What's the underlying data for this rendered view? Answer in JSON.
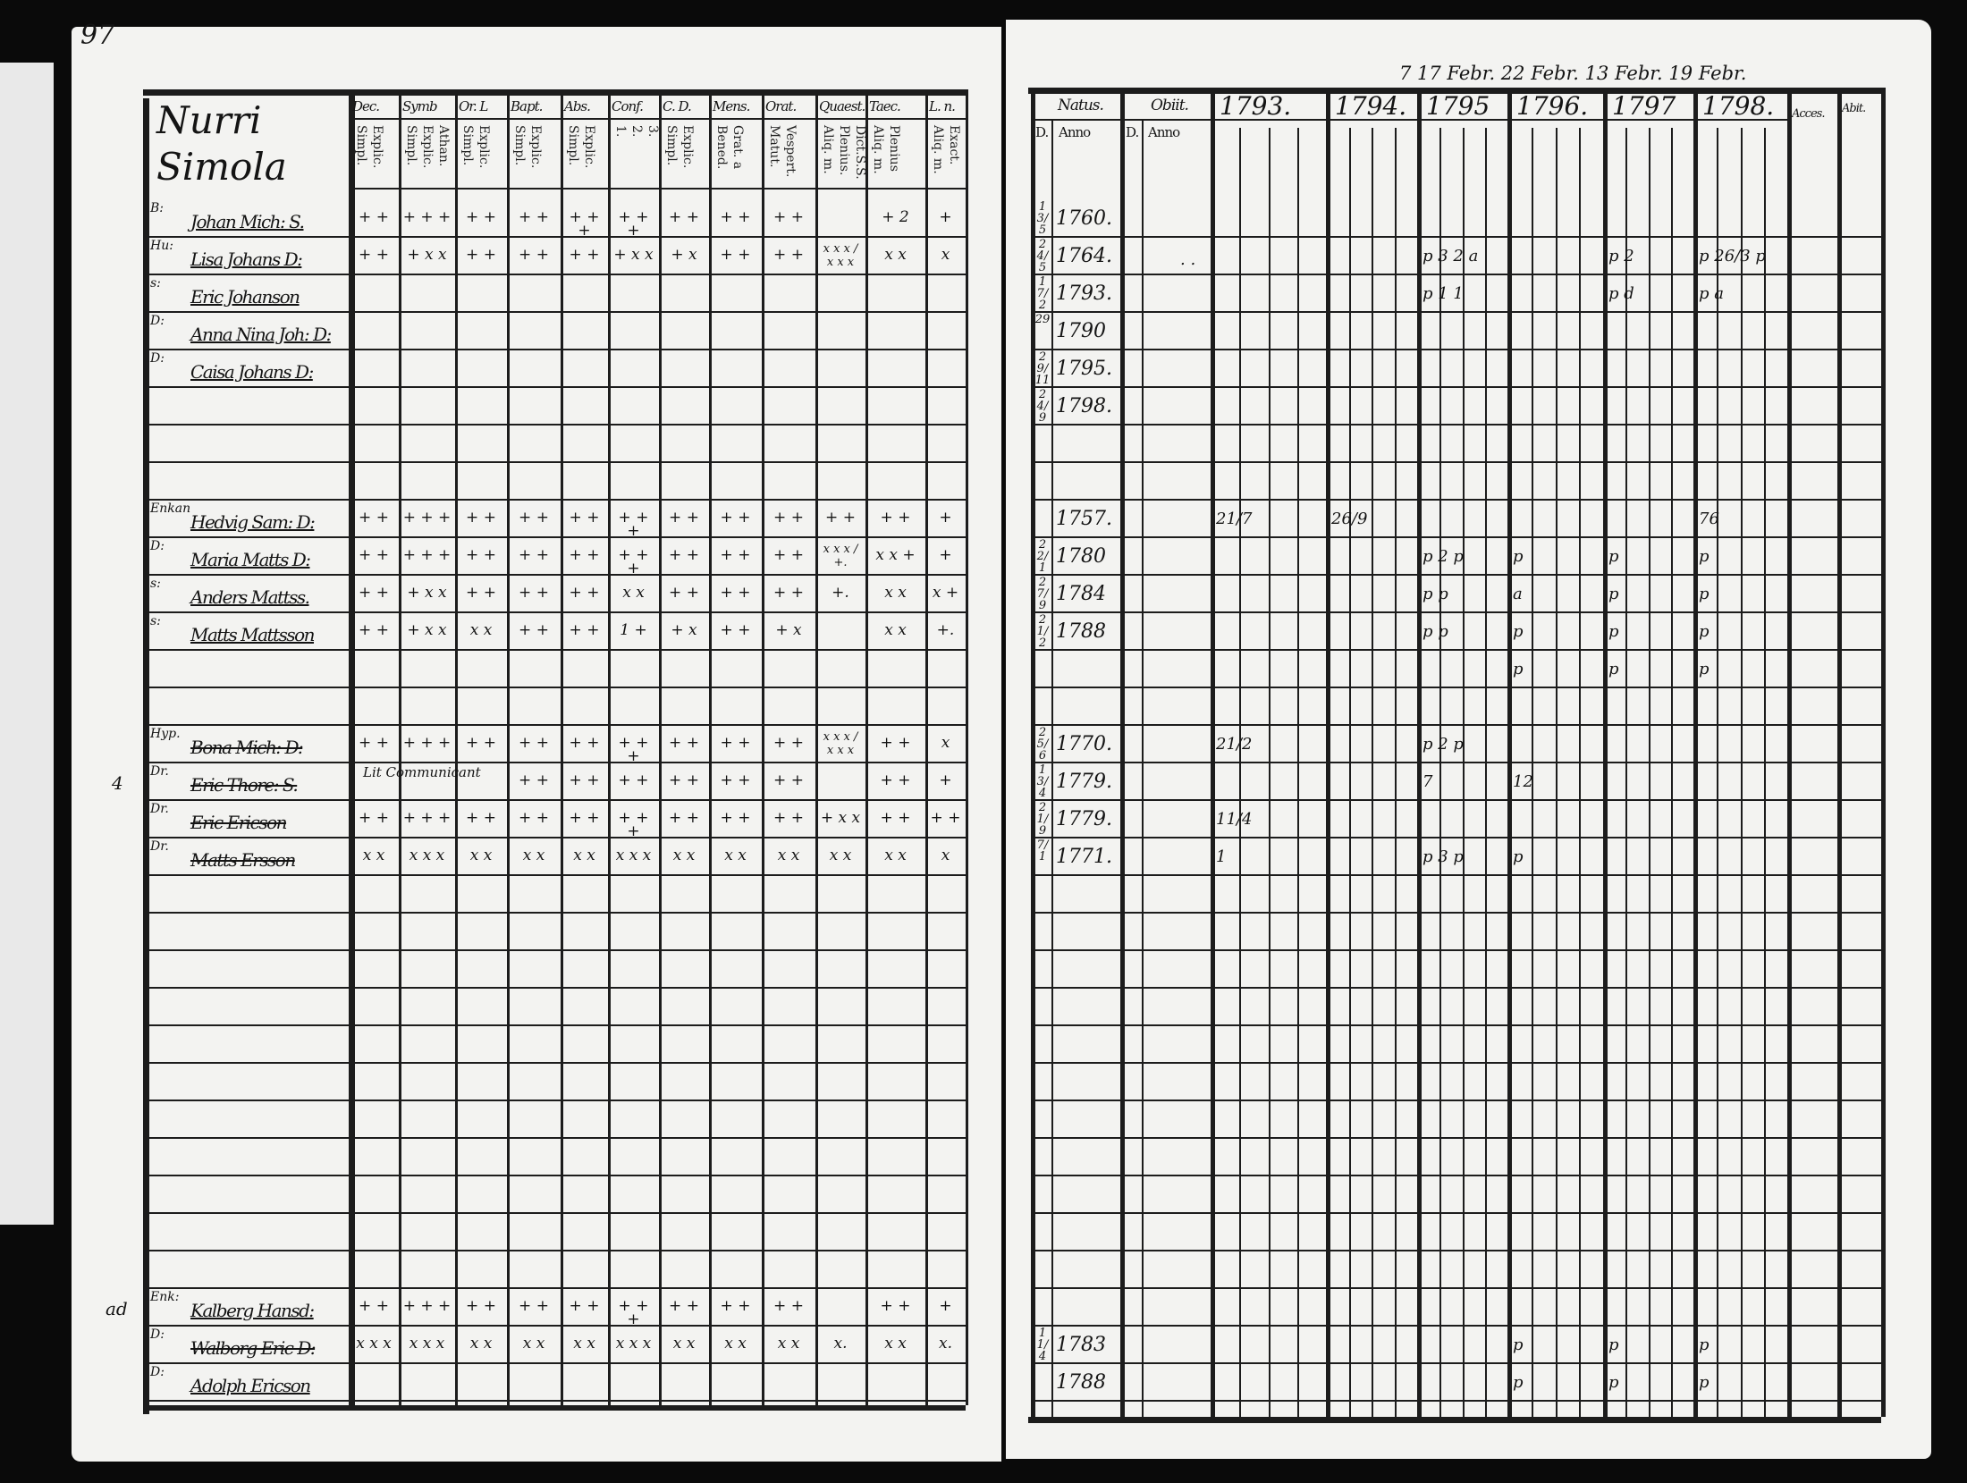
{
  "page_number": "97",
  "left_page": {
    "place_title": [
      "Nurri",
      "Simola"
    ],
    "columns": [
      {
        "label": "Dec.",
        "sub": "Explic.\nSimpl."
      },
      {
        "label": "Symb",
        "sub": "Athan.\nExplic.\nSimpl."
      },
      {
        "label": "Or. L",
        "sub": "Explic.\nSimpl."
      },
      {
        "label": "Bapt.",
        "sub": "Explic.\nSimpl."
      },
      {
        "label": "Abs.",
        "sub": "Explic.\nSimpl."
      },
      {
        "label": "Conf.",
        "sub": "3.\n2.\n1."
      },
      {
        "label": "C. D.",
        "sub": "Explic.\nSimpl."
      },
      {
        "label": "Mens.",
        "sub": "Grat. a\nBened."
      },
      {
        "label": "Orat.",
        "sub": "Vespert.\nMatut."
      },
      {
        "label": "Quaest.",
        "sub": "Dict.S.S.\nPlenius.\nAliq. m."
      },
      {
        "label": "Taec.",
        "sub": "Plenius\nAliq. m."
      },
      {
        "label": "L. n.",
        "sub": "Exact.\nAliq. m."
      }
    ],
    "rows": [
      {
        "prefix": "B:",
        "name": "Johan Mich: S.",
        "marks": [
          "+ +",
          "+ + +",
          "+ +",
          "+ +",
          "+ + +",
          "+ + +",
          "+ +",
          "+ +",
          "+ +",
          "",
          "+ 2",
          "+"
        ]
      },
      {
        "prefix": "Hu:",
        "name": "Lisa Johans D:",
        "marks": [
          "+ +",
          "+ x x",
          "+ +",
          "+ +",
          "+ +",
          "+ x x",
          "+ x",
          "+ +",
          "+ +",
          "x x x / x x x",
          "x x",
          "x"
        ]
      },
      {
        "prefix": "s:",
        "name": "Eric Johanson",
        "marks": []
      },
      {
        "prefix": "D:",
        "name": "Anna Nina Joh: D:",
        "marks": []
      },
      {
        "prefix": "D:",
        "name": "Caisa Johans D:",
        "marks": []
      },
      {
        "prefix": "",
        "name": "",
        "marks": []
      },
      {
        "prefix": "",
        "name": "",
        "marks": []
      },
      {
        "prefix": "",
        "name": "",
        "marks": []
      },
      {
        "prefix": "Enkan",
        "name": "Hedvig Sam: D:",
        "marks": [
          "+ +",
          "+ + +",
          "+ +",
          "+ +",
          "+ +",
          "+ + +",
          "+ +",
          "+ +",
          "+ +",
          "+ +",
          "+ +",
          "+"
        ]
      },
      {
        "prefix": "D:",
        "name": "Maria Matts D:",
        "marks": [
          "+ +",
          "+ + +",
          "+ +",
          "+ +",
          "+ +",
          "+ + +",
          "+ +",
          "+ +",
          "+ +",
          "x x x / +.",
          "x x +",
          "+"
        ]
      },
      {
        "prefix": "s:",
        "name": "Anders Mattss.",
        "marks": [
          "+ +",
          "+ x x",
          "+ +",
          "+ +",
          "+ +",
          "x x",
          "+ +",
          "+ +",
          "+ +",
          "+.",
          "x x",
          "x +"
        ]
      },
      {
        "prefix": "s:",
        "name": "Matts Mattsson",
        "marks": [
          "+ +",
          "+ x x",
          "x x",
          "+ +",
          "+ +",
          "1 +",
          "+ x",
          "+ +",
          "+ x",
          "",
          "x x",
          "+."
        ]
      },
      {
        "prefix": "",
        "name": "",
        "marks": []
      },
      {
        "prefix": "",
        "name": "",
        "marks": []
      },
      {
        "prefix": "Hyp.",
        "name": "Bona Mich: D:",
        "struck": true,
        "marks": [
          "+ +",
          "+ + +",
          "+ +",
          "+ +",
          "+ +",
          "+ + +",
          "+ +",
          "+ +",
          "+ +",
          "x x x / x x x",
          "+ +",
          "x"
        ]
      },
      {
        "prefix": "Dr.",
        "name": "Eric Thore: S.",
        "struck": true,
        "margin": "4",
        "note": "Lit Communicant",
        "marks": [
          "",
          "",
          "",
          "+ +",
          "+ +",
          "+ +",
          "+ +",
          "+ +",
          "+ +",
          "",
          "+ +",
          "+"
        ]
      },
      {
        "prefix": "Dr.",
        "name": "Eric Ericson",
        "struck": true,
        "marks": [
          "+ +",
          "+ + +",
          "+ +",
          "+ +",
          "+ +",
          "+ + +",
          "+ +",
          "+ +",
          "+ +",
          "+ x x",
          "+ +",
          "+ +"
        ]
      },
      {
        "prefix": "Dr.",
        "name": "Matts Ersson",
        "struck": true,
        "marks": [
          "x x",
          "x x x",
          "x x",
          "x x",
          "x x",
          "x x x",
          "x x",
          "x x",
          "x x",
          "x x",
          "x x",
          "x"
        ]
      },
      {
        "prefix": "",
        "name": "",
        "marks": []
      },
      {
        "prefix": "",
        "name": "",
        "marks": []
      },
      {
        "prefix": "",
        "name": "",
        "marks": []
      },
      {
        "prefix": "",
        "name": "",
        "marks": []
      },
      {
        "prefix": "",
        "name": "",
        "marks": []
      },
      {
        "prefix": "",
        "name": "",
        "marks": []
      },
      {
        "prefix": "",
        "name": "",
        "marks": []
      },
      {
        "prefix": "",
        "name": "",
        "marks": []
      },
      {
        "prefix": "",
        "name": "",
        "marks": []
      },
      {
        "prefix": "",
        "name": "",
        "marks": []
      },
      {
        "prefix": "",
        "name": "",
        "marks": []
      },
      {
        "prefix": "Enk:",
        "name": "Kalberg Hansd:",
        "margin": "ad",
        "marks": [
          "+ +",
          "+ + +",
          "+ +",
          "+ +",
          "+ +",
          "+ + +",
          "+ +",
          "+ +",
          "+ +",
          "",
          "+ +",
          "+"
        ]
      },
      {
        "prefix": "D:",
        "name": "Walborg Eric D:",
        "struck": true,
        "marks": [
          "x x x",
          "x x x",
          "x x",
          "x x",
          "x x",
          "x x x",
          "x x",
          "x x",
          "x x",
          "x.",
          "x x",
          "x."
        ]
      },
      {
        "prefix": "D:",
        "name": "Adolph Ericson",
        "marks": []
      }
    ]
  },
  "right_page": {
    "dates_note": "7 17 Febr. 22 Febr. 13 Febr. 19 Febr.",
    "natus": {
      "label": "Natus.",
      "day": "D.",
      "year": "Anno"
    },
    "obiit": {
      "label": "Obiit.",
      "day": "D.",
      "year": "Anno"
    },
    "years": [
      "1793.",
      "1794.",
      "1795",
      "1796.",
      "1797",
      "1798."
    ],
    "acces": "Acces.",
    "abit": "Abit.",
    "rows": [
      {
        "day": "13/5",
        "year": "1760.",
        "marks": [
          "",
          "",
          "",
          "",
          "",
          ""
        ]
      },
      {
        "day": "24/5",
        "year": "1764.",
        "obiit": ". .",
        "marks": [
          "",
          "",
          "p 3 2 a",
          "",
          "p 2",
          "p 26/3 p"
        ]
      },
      {
        "day": "17/2",
        "year": "1793.",
        "marks": [
          "",
          "",
          "p 1 1",
          "",
          "p d",
          "p a"
        ]
      },
      {
        "day": "29",
        "year": "1790",
        "marks": []
      },
      {
        "day": "29/11",
        "year": "1795.",
        "marks": []
      },
      {
        "day": "24/9",
        "year": "1798.",
        "marks": []
      },
      {
        "day": "",
        "year": "",
        "marks": []
      },
      {
        "day": "",
        "year": "",
        "marks": []
      },
      {
        "day": "",
        "year": "1757.",
        "marks": [
          "21/7",
          "26/9",
          "",
          "",
          "",
          "76"
        ]
      },
      {
        "day": "22/1",
        "year": "1780",
        "marks": [
          "",
          "",
          "p 2 p",
          "p",
          "p",
          "p"
        ]
      },
      {
        "day": "27/9",
        "year": "1784",
        "marks": [
          "",
          "",
          "p p",
          "a",
          "p",
          "p"
        ]
      },
      {
        "day": "21/2",
        "year": "1788",
        "marks": [
          "",
          "",
          "p p",
          "p",
          "p",
          "p"
        ]
      },
      {
        "day": "",
        "year": "",
        "marks": [
          "",
          "",
          "",
          "p",
          "p",
          "p"
        ]
      },
      {
        "day": "",
        "year": "",
        "marks": []
      },
      {
        "day": "25/6",
        "year": "1770.",
        "marks": [
          "21/2",
          "",
          "p 2 p",
          "",
          "",
          ""
        ]
      },
      {
        "day": "13/4",
        "year": "1779.",
        "marks": [
          "",
          "",
          "7",
          "12",
          "",
          ""
        ]
      },
      {
        "day": "21/9",
        "year": "1779.",
        "marks": [
          "11/4",
          "",
          "",
          "",
          "",
          ""
        ]
      },
      {
        "day": "7/1",
        "year": "1771.",
        "marks": [
          "1",
          "",
          "p 3 p",
          "p",
          "",
          ""
        ]
      },
      {
        "day": "",
        "year": "",
        "marks": []
      },
      {
        "day": "",
        "year": "",
        "marks": []
      },
      {
        "day": "",
        "year": "",
        "marks": []
      },
      {
        "day": "",
        "year": "",
        "marks": []
      },
      {
        "day": "",
        "year": "",
        "marks": []
      },
      {
        "day": "",
        "year": "",
        "marks": []
      },
      {
        "day": "",
        "year": "",
        "marks": []
      },
      {
        "day": "",
        "year": "",
        "marks": []
      },
      {
        "day": "",
        "year": "",
        "marks": []
      },
      {
        "day": "",
        "year": "",
        "marks": []
      },
      {
        "day": "",
        "year": "",
        "marks": []
      },
      {
        "day": "",
        "year": "",
        "marks": []
      },
      {
        "day": "11/4",
        "year": "1783",
        "marks": [
          "",
          "",
          "",
          "p",
          "p",
          "p"
        ]
      },
      {
        "day": "",
        "year": "1788",
        "marks": [
          "",
          "",
          "",
          "p",
          "p",
          "p"
        ]
      }
    ]
  }
}
